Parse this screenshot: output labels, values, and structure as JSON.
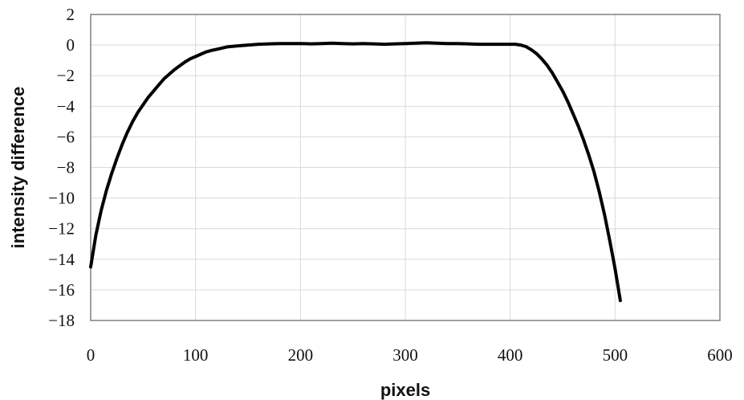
{
  "chart_data": {
    "type": "line",
    "title": "",
    "xlabel": "pixels",
    "ylabel": "intensity difference",
    "xlim": [
      0,
      600
    ],
    "ylim": [
      -18,
      2
    ],
    "xticks": [
      0,
      100,
      200,
      300,
      400,
      500,
      600
    ],
    "yticks": [
      2,
      0,
      -2,
      -4,
      -6,
      -8,
      -10,
      -12,
      -14,
      -16,
      -18
    ],
    "xtick_labels": [
      "0",
      "100",
      "200",
      "300",
      "400",
      "500",
      "600"
    ],
    "ytick_labels": [
      "2",
      "0",
      "−2",
      "−4",
      "−6",
      "−8",
      "−10",
      "−12",
      "−14",
      "−16",
      "−18"
    ],
    "grid": true,
    "legend": "none",
    "line_color": "#000000",
    "series": [
      {
        "x": [
          0,
          5,
          10,
          15,
          20,
          25,
          30,
          35,
          40,
          45,
          50,
          55,
          60,
          65,
          70,
          75,
          80,
          85,
          90,
          95,
          100,
          105,
          110,
          115,
          120,
          125,
          130,
          140,
          150,
          160,
          170,
          180,
          190,
          200,
          210,
          220,
          230,
          240,
          250,
          260,
          270,
          280,
          290,
          300,
          310,
          320,
          330,
          340,
          350,
          360,
          370,
          380,
          390,
          400,
          405,
          410,
          415,
          420,
          425,
          430,
          435,
          440,
          445,
          450,
          455,
          460,
          465,
          470,
          475,
          480,
          485,
          490,
          495,
          500,
          505
        ],
        "y": [
          -14.5,
          -12.4,
          -10.8,
          -9.5,
          -8.4,
          -7.4,
          -6.5,
          -5.7,
          -5.0,
          -4.4,
          -3.9,
          -3.4,
          -3.0,
          -2.6,
          -2.2,
          -1.9,
          -1.6,
          -1.35,
          -1.1,
          -0.9,
          -0.75,
          -0.6,
          -0.45,
          -0.35,
          -0.28,
          -0.2,
          -0.12,
          -0.05,
          0.0,
          0.05,
          0.08,
          0.1,
          0.1,
          0.1,
          0.08,
          0.1,
          0.12,
          0.1,
          0.08,
          0.1,
          0.08,
          0.05,
          0.08,
          0.1,
          0.12,
          0.15,
          0.12,
          0.1,
          0.1,
          0.08,
          0.05,
          0.05,
          0.05,
          0.05,
          0.05,
          0.0,
          -0.1,
          -0.3,
          -0.55,
          -0.9,
          -1.3,
          -1.8,
          -2.4,
          -3.0,
          -3.7,
          -4.5,
          -5.3,
          -6.2,
          -7.2,
          -8.3,
          -9.6,
          -11.1,
          -12.8,
          -14.6,
          -16.7
        ]
      }
    ]
  }
}
